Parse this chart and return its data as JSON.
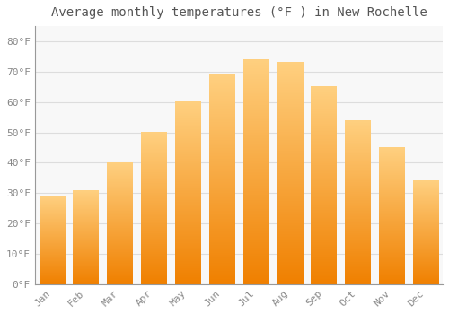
{
  "title": "Average monthly temperatures (°F ) in New Rochelle",
  "months": [
    "Jan",
    "Feb",
    "Mar",
    "Apr",
    "May",
    "Jun",
    "Jul",
    "Aug",
    "Sep",
    "Oct",
    "Nov",
    "Dec"
  ],
  "values": [
    29,
    31,
    40,
    50,
    60,
    69,
    74,
    73,
    65,
    54,
    45,
    34
  ],
  "bar_color": "#FFA500",
  "bar_color_light": "#FFD080",
  "bar_color_dark": "#F08000",
  "background_color": "#FFFFFF",
  "plot_bg_color": "#F8F8F8",
  "grid_color": "#DDDDDD",
  "ytick_labels": [
    "0°F",
    "10°F",
    "20°F",
    "30°F",
    "40°F",
    "50°F",
    "60°F",
    "70°F",
    "80°F"
  ],
  "ytick_values": [
    0,
    10,
    20,
    30,
    40,
    50,
    60,
    70,
    80
  ],
  "ylim": [
    0,
    85
  ],
  "title_fontsize": 10,
  "tick_fontsize": 8,
  "tick_color": "#888888",
  "title_color": "#555555",
  "bar_width": 0.75
}
